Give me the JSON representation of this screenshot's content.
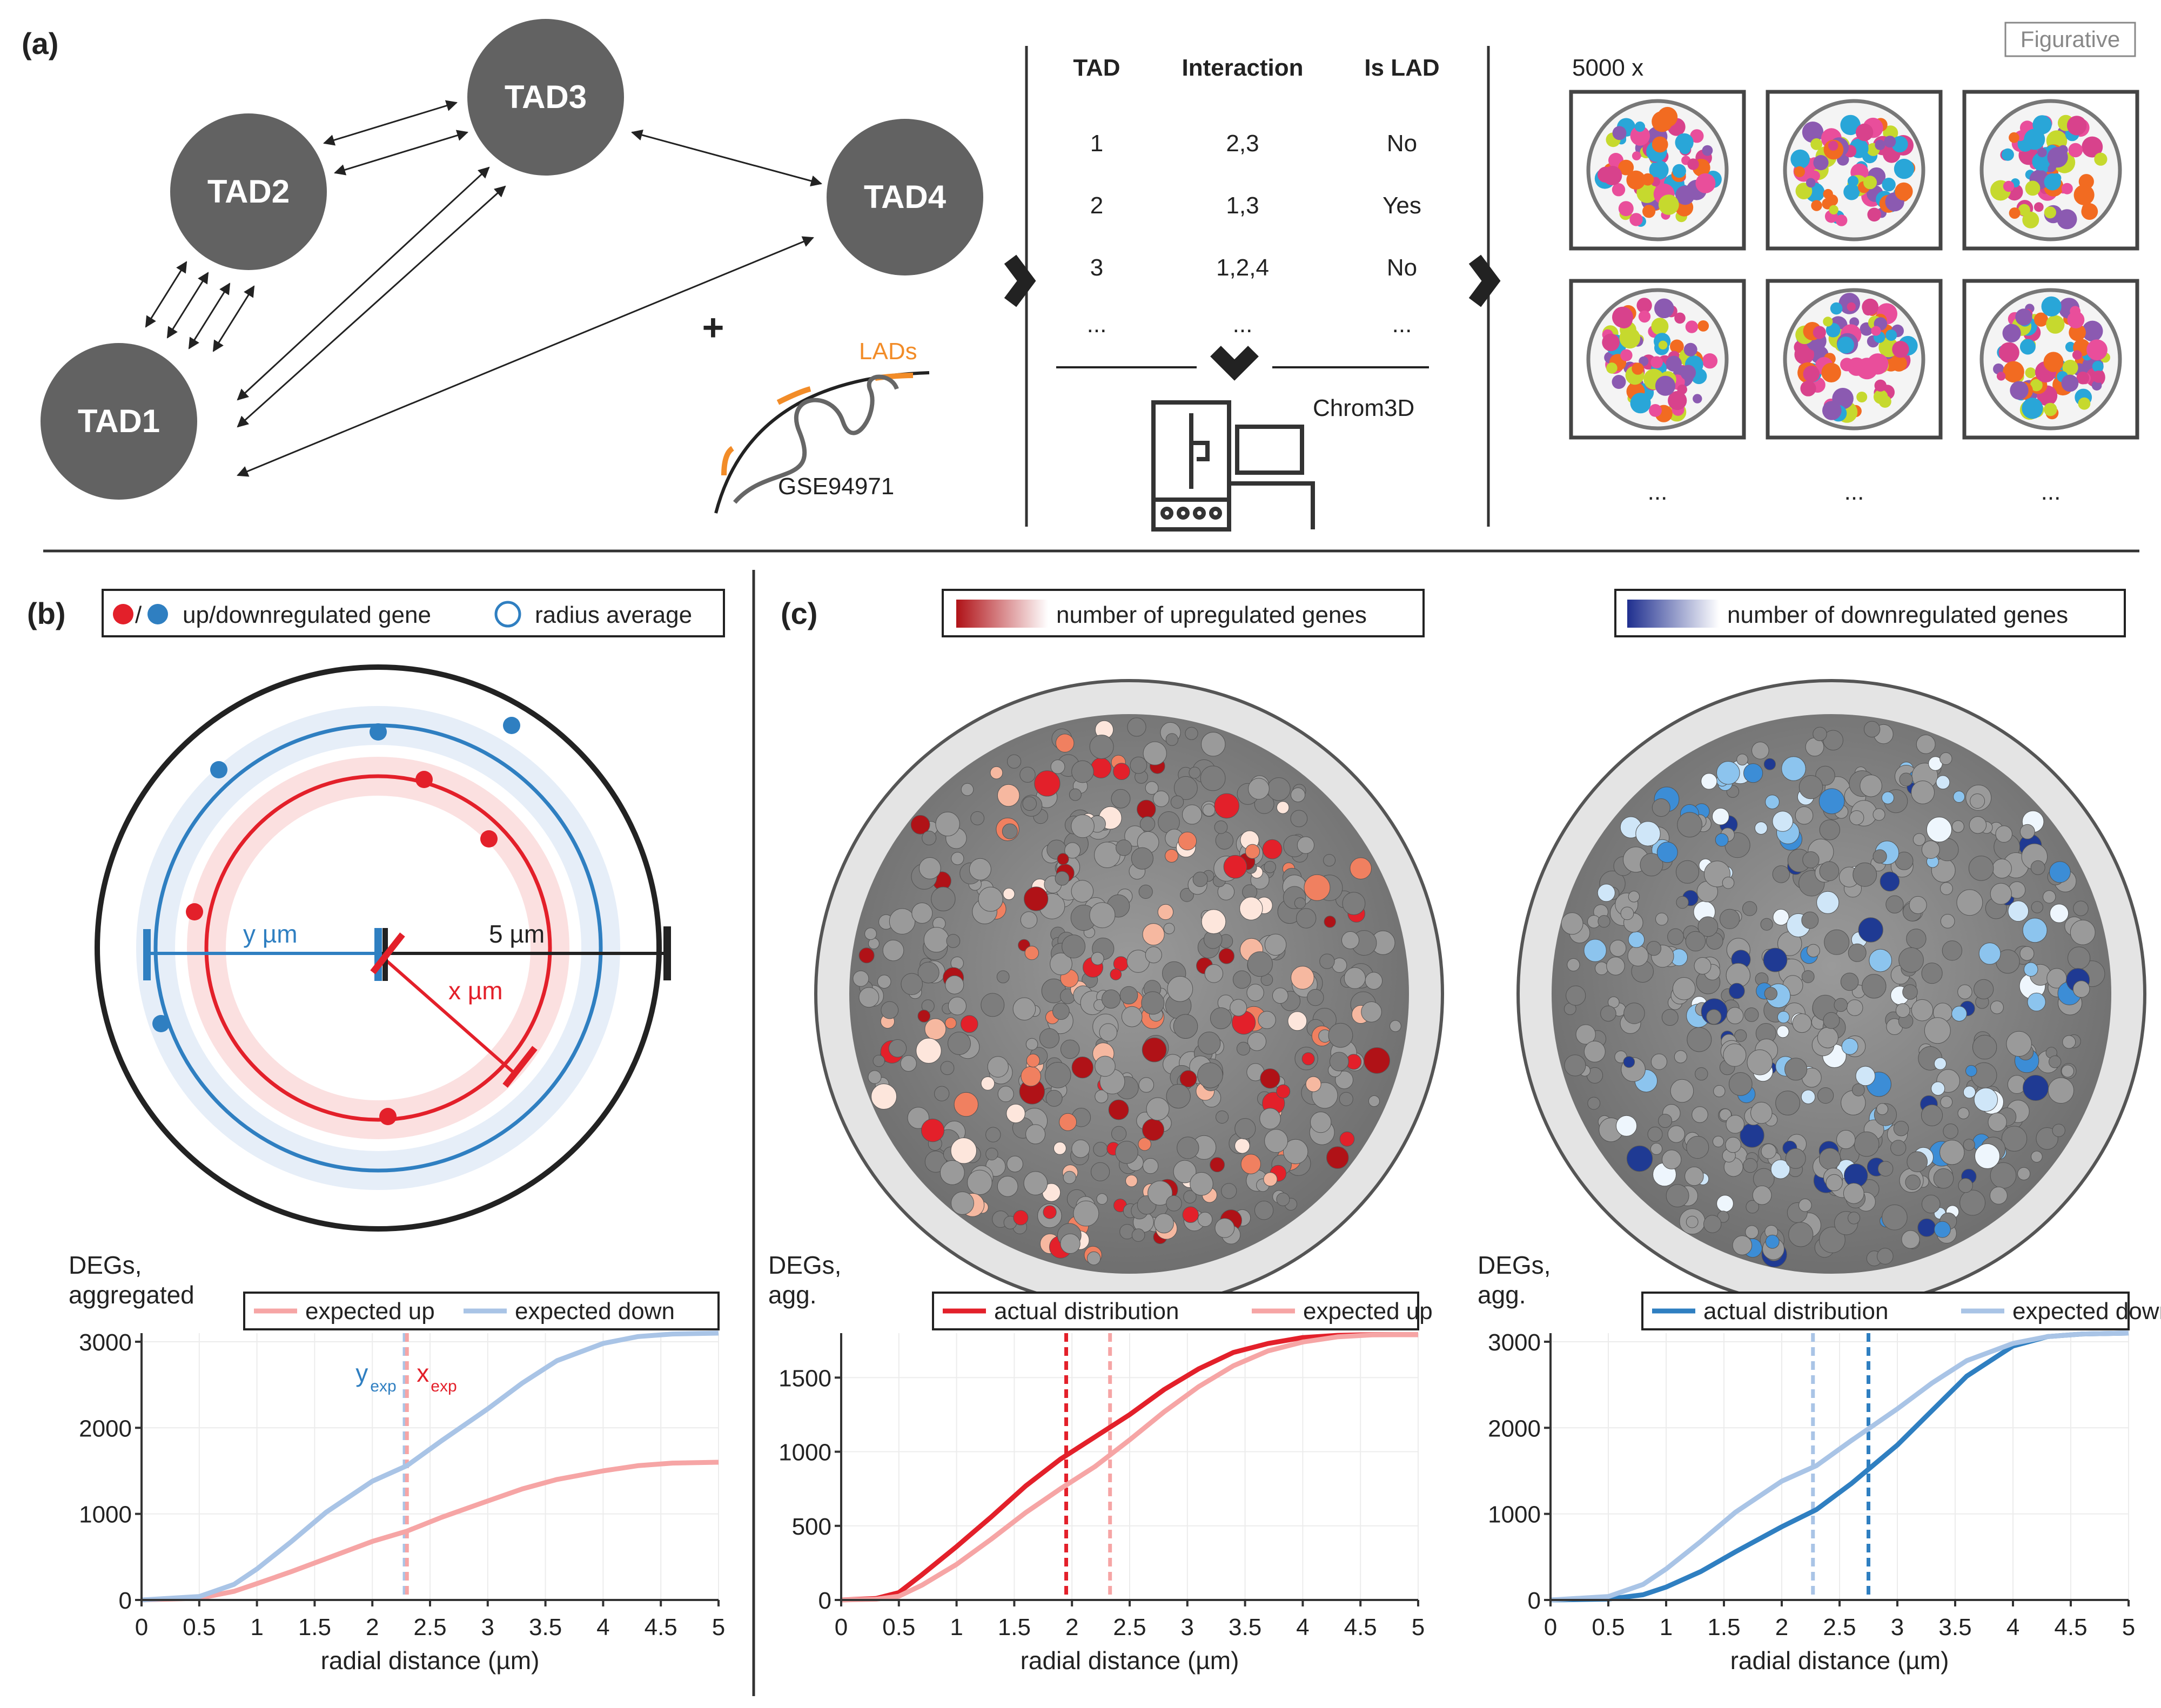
{
  "panel_a": {
    "label": "(a)",
    "tads": [
      "TAD1",
      "TAD2",
      "TAD3",
      "TAD4"
    ],
    "plus": "+",
    "lads_label": "LADs",
    "dataset": "GSE94971",
    "table": {
      "headers": [
        "TAD",
        "Interaction",
        "Is LAD"
      ],
      "rows": [
        [
          "1",
          "2,3",
          "No"
        ],
        [
          "2",
          "1,3",
          "Yes"
        ],
        [
          "3",
          "1,2,4",
          "No"
        ],
        [
          "...",
          "...",
          "..."
        ]
      ]
    },
    "tool": "Chrom3D",
    "ensemble": "5000 x",
    "figurative": "Figurative",
    "ellipsis": "..."
  },
  "panel_b": {
    "label": "(b)",
    "legend_genes": "up/downregulated gene",
    "legend_slash": "/",
    "legend_radius": "radius average",
    "label_y": "y µm",
    "label_x": "x µm",
    "label_5": "5 µm",
    "colors": {
      "up": "#e3202a",
      "down": "#2f7fc1",
      "up_light": "#f6a5a5",
      "down_light": "#a9c4e6"
    }
  },
  "panel_c": {
    "label": "(c)",
    "legend_up": "number of upregulated genes",
    "legend_down": "number of downregulated genes"
  },
  "chart_data": [
    {
      "type": "line",
      "ylabel": "DEGs,\naggregated",
      "xlabel": "radial distance (µm)",
      "xlim": [
        0,
        5
      ],
      "ylim": [
        0,
        3100
      ],
      "xticks": [
        "0",
        "0.5",
        "1",
        "1.5",
        "2",
        "2.5",
        "3",
        "3.5",
        "4",
        "4.5",
        "5"
      ],
      "yticks": [
        "0",
        "1000",
        "2000",
        "3000"
      ],
      "series": [
        {
          "name": "expected up",
          "color": "#f6a5a5",
          "x": [
            0,
            0.5,
            0.8,
            1,
            1.3,
            1.6,
            2,
            2.3,
            2.6,
            3,
            3.3,
            3.6,
            4,
            4.3,
            4.6,
            5
          ],
          "y": [
            0,
            20,
            100,
            190,
            330,
            480,
            680,
            800,
            960,
            1150,
            1290,
            1400,
            1500,
            1560,
            1590,
            1600
          ]
        },
        {
          "name": "expected down",
          "color": "#a9c4e6",
          "x": [
            0,
            0.5,
            0.8,
            1,
            1.3,
            1.6,
            2,
            2.3,
            2.6,
            3,
            3.3,
            3.6,
            4,
            4.3,
            4.6,
            5
          ],
          "y": [
            0,
            40,
            180,
            360,
            680,
            1020,
            1380,
            1560,
            1850,
            2220,
            2520,
            2780,
            2980,
            3060,
            3090,
            3100
          ]
        }
      ],
      "vlines": [
        {
          "x": 2.28,
          "color": "#a9c4e6"
        },
        {
          "x": 2.3,
          "color": "#f6a5a5"
        }
      ],
      "annotations": {
        "y_base": "y",
        "y_sub": "exp",
        "x_base": "x",
        "x_sub": "exp"
      }
    },
    {
      "type": "line",
      "ylabel": "DEGs,\nagg.",
      "xlabel": "radial distance (µm)",
      "xlim": [
        0,
        5
      ],
      "ylim": [
        0,
        1800
      ],
      "xticks": [
        "0",
        "0.5",
        "1",
        "1.5",
        "2",
        "2.5",
        "3",
        "3.5",
        "4",
        "4.5",
        "5"
      ],
      "yticks": [
        "0",
        "500",
        "1000",
        "1500"
      ],
      "series": [
        {
          "name": "actual distribution",
          "color": "#e3202a",
          "x": [
            0,
            0.3,
            0.5,
            0.7,
            1,
            1.3,
            1.6,
            1.9,
            2.2,
            2.5,
            2.8,
            3.1,
            3.4,
            3.7,
            4,
            4.3,
            4.6,
            5
          ],
          "y": [
            0,
            10,
            50,
            170,
            360,
            560,
            770,
            950,
            1100,
            1250,
            1420,
            1560,
            1670,
            1730,
            1770,
            1785,
            1790,
            1790
          ]
        },
        {
          "name": "expected up",
          "color": "#f6a5a5",
          "x": [
            0,
            0.3,
            0.5,
            0.7,
            1,
            1.3,
            1.6,
            1.9,
            2.2,
            2.5,
            2.8,
            3.1,
            3.4,
            3.7,
            4,
            4.3,
            4.6,
            5
          ],
          "y": [
            0,
            5,
            25,
            100,
            240,
            410,
            590,
            750,
            900,
            1080,
            1270,
            1440,
            1580,
            1680,
            1740,
            1775,
            1788,
            1790
          ]
        }
      ],
      "vlines": [
        {
          "x": 1.95,
          "color": "#e3202a"
        },
        {
          "x": 2.33,
          "color": "#f6a5a5"
        }
      ]
    },
    {
      "type": "line",
      "ylabel": "DEGs,\nagg.",
      "xlabel": "radial distance (µm)",
      "xlim": [
        0,
        5
      ],
      "ylim": [
        0,
        3100
      ],
      "xticks": [
        "0",
        "0.5",
        "1",
        "1.5",
        "2",
        "2.5",
        "3",
        "3.5",
        "4",
        "4.5",
        "5"
      ],
      "yticks": [
        "0",
        "1000",
        "2000",
        "3000"
      ],
      "series": [
        {
          "name": "actual distribution",
          "color": "#2f7fc1",
          "x": [
            0,
            0.5,
            0.8,
            1,
            1.3,
            1.6,
            2,
            2.3,
            2.6,
            3,
            3.3,
            3.6,
            4,
            4.3,
            4.6,
            5
          ],
          "y": [
            0,
            10,
            60,
            150,
            330,
            560,
            850,
            1050,
            1350,
            1800,
            2200,
            2600,
            2950,
            3060,
            3090,
            3100
          ]
        },
        {
          "name": "expected down",
          "color": "#a9c4e6",
          "x": [
            0,
            0.5,
            0.8,
            1,
            1.3,
            1.6,
            2,
            2.3,
            2.6,
            3,
            3.3,
            3.6,
            4,
            4.3,
            4.6,
            5
          ],
          "y": [
            0,
            40,
            180,
            360,
            680,
            1020,
            1380,
            1560,
            1850,
            2220,
            2520,
            2780,
            2980,
            3060,
            3090,
            3100
          ]
        }
      ],
      "vlines": [
        {
          "x": 2.27,
          "color": "#a9c4e6"
        },
        {
          "x": 2.75,
          "color": "#2f7fc1"
        }
      ]
    }
  ]
}
